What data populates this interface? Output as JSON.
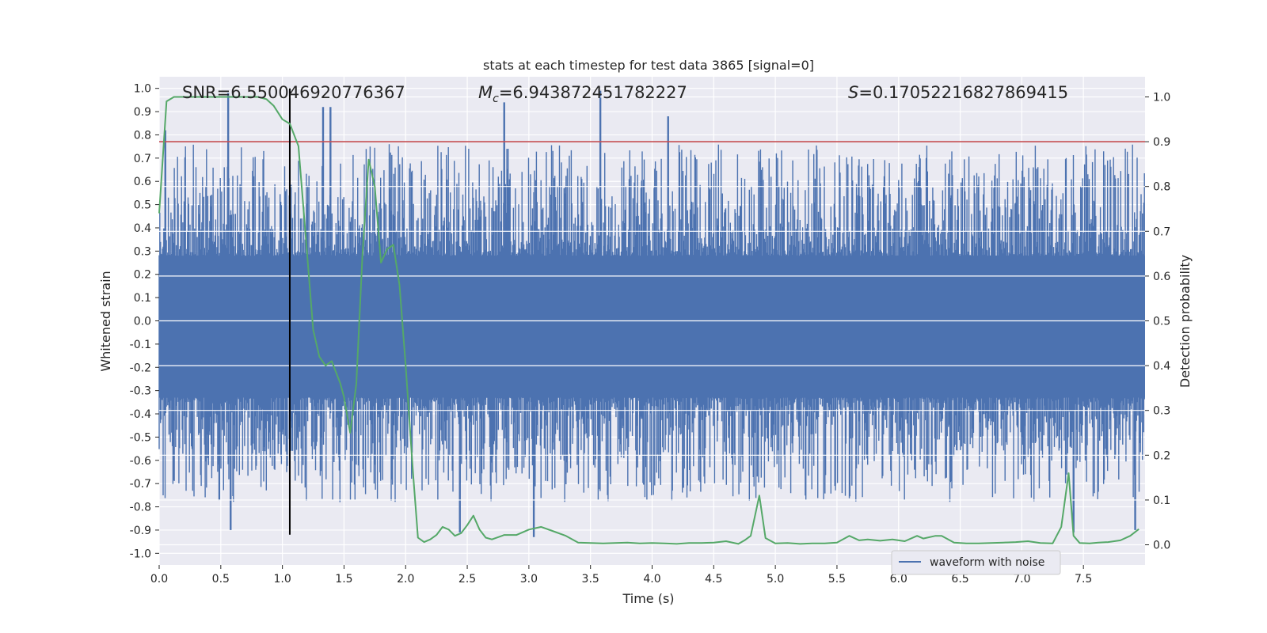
{
  "chart_data": {
    "type": "line",
    "title": "stats at each timestep for test data 3865 [signal=0]",
    "xlabel": "Time (s)",
    "ylabel_left": "Whitened strain",
    "ylabel_right": "Detection probability",
    "xlim": [
      0.0,
      8.0
    ],
    "ylim_left": [
      -1.05,
      1.05
    ],
    "ylim_right": [
      -0.045,
      1.045
    ],
    "x_ticks": [
      "0.0",
      "0.5",
      "1.0",
      "1.5",
      "2.0",
      "2.5",
      "3.0",
      "3.5",
      "4.0",
      "4.5",
      "5.0",
      "5.5",
      "6.0",
      "6.5",
      "7.0",
      "7.5"
    ],
    "y_left_ticks": [
      "1.0",
      "0.9",
      "0.8",
      "0.7",
      "0.6",
      "0.5",
      "0.4",
      "0.3",
      "0.2",
      "0.1",
      "0.0",
      "-0.1",
      "-0.2",
      "-0.3",
      "-0.4",
      "-0.5",
      "-0.6",
      "-0.7",
      "-0.8",
      "-0.9",
      "-1.0"
    ],
    "y_right_ticks": [
      "1.0",
      "0.9",
      "0.8",
      "0.7",
      "0.6",
      "0.5",
      "0.4",
      "0.3",
      "0.2",
      "0.1",
      "0.0"
    ],
    "grid": true,
    "legend": {
      "placement": "lower-right",
      "entries": [
        "waveform with noise"
      ]
    },
    "annotations": {
      "snr": "SNR=6.550046920776367",
      "mc_symbol": "M",
      "mc_sub": "c",
      "mc_value": "=6.943872451782227",
      "s_symbol": "S",
      "s_value": "=0.17052216827869415"
    },
    "threshold_right": 0.9,
    "marker_time": 1.06,
    "marker_range_left": [
      -0.92,
      1.0
    ],
    "waveform": {
      "name": "waveform with noise",
      "color": "#4c72b0",
      "core_envelope": [
        -0.33,
        0.28
      ],
      "notable_peaks": [
        {
          "x": 0.05,
          "y": 0.82
        },
        {
          "x": 0.56,
          "y": 0.98
        },
        {
          "x": 0.58,
          "y": -0.9
        },
        {
          "x": 1.33,
          "y": 0.92
        },
        {
          "x": 1.39,
          "y": 0.92
        },
        {
          "x": 2.8,
          "y": 0.94
        },
        {
          "x": 3.58,
          "y": 0.99
        },
        {
          "x": 4.13,
          "y": 0.88
        },
        {
          "x": 2.44,
          "y": -0.91
        },
        {
          "x": 3.04,
          "y": -0.93
        },
        {
          "x": 7.42,
          "y": -0.91
        },
        {
          "x": 7.92,
          "y": -0.9
        }
      ]
    },
    "detection_probability": {
      "color": "#55a868",
      "x": [
        0.0,
        0.06,
        0.12,
        0.2,
        0.3,
        0.4,
        0.5,
        0.6,
        0.7,
        0.8,
        0.87,
        0.93,
        1.0,
        1.06,
        1.13,
        1.2,
        1.25,
        1.3,
        1.35,
        1.4,
        1.47,
        1.5,
        1.55,
        1.6,
        1.65,
        1.7,
        1.75,
        1.8,
        1.85,
        1.9,
        1.95,
        2.0,
        2.06,
        2.1,
        2.15,
        2.2,
        2.25,
        2.3,
        2.35,
        2.4,
        2.45,
        2.5,
        2.55,
        2.6,
        2.65,
        2.7,
        2.8,
        2.9,
        3.0,
        3.1,
        3.2,
        3.3,
        3.4,
        3.5,
        3.6,
        3.7,
        3.8,
        3.9,
        4.0,
        4.1,
        4.2,
        4.3,
        4.4,
        4.5,
        4.6,
        4.7,
        4.75,
        4.8,
        4.87,
        4.92,
        5.0,
        5.1,
        5.2,
        5.3,
        5.4,
        5.5,
        5.6,
        5.68,
        5.75,
        5.85,
        5.95,
        6.05,
        6.15,
        6.2,
        6.3,
        6.35,
        6.45,
        6.55,
        6.65,
        6.75,
        6.85,
        6.95,
        7.05,
        7.15,
        7.25,
        7.32,
        7.38,
        7.42,
        7.47,
        7.55,
        7.62,
        7.7,
        7.8,
        7.88,
        7.95
      ],
      "y": [
        0.74,
        0.99,
        1.0,
        1.0,
        1.0,
        1.0,
        1.0,
        1.0,
        1.0,
        1.0,
        0.995,
        0.98,
        0.95,
        0.94,
        0.89,
        0.65,
        0.48,
        0.42,
        0.4,
        0.41,
        0.36,
        0.33,
        0.25,
        0.36,
        0.65,
        0.86,
        0.8,
        0.63,
        0.66,
        0.67,
        0.58,
        0.4,
        0.16,
        0.016,
        0.006,
        0.012,
        0.022,
        0.04,
        0.034,
        0.02,
        0.026,
        0.044,
        0.065,
        0.034,
        0.016,
        0.012,
        0.022,
        0.022,
        0.034,
        0.04,
        0.03,
        0.02,
        0.005,
        0.004,
        0.003,
        0.004,
        0.005,
        0.003,
        0.004,
        0.003,
        0.002,
        0.004,
        0.004,
        0.005,
        0.008,
        0.002,
        0.01,
        0.02,
        0.11,
        0.015,
        0.003,
        0.004,
        0.002,
        0.003,
        0.003,
        0.005,
        0.02,
        0.01,
        0.012,
        0.009,
        0.012,
        0.008,
        0.02,
        0.014,
        0.02,
        0.02,
        0.005,
        0.003,
        0.003,
        0.004,
        0.005,
        0.006,
        0.008,
        0.004,
        0.003,
        0.04,
        0.16,
        0.02,
        0.004,
        0.003,
        0.005,
        0.006,
        0.01,
        0.02,
        0.035
      ]
    }
  }
}
